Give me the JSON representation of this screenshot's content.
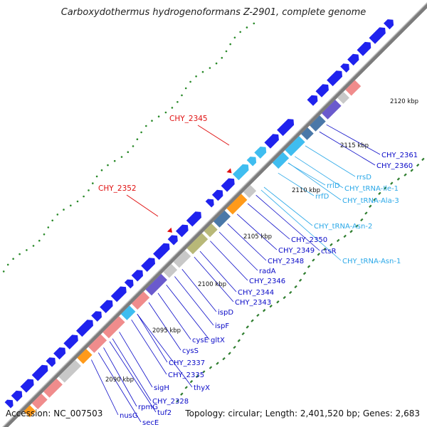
{
  "title": "Carboxydothermus hydrogenoformans Z-2901, complete genome",
  "footer": {
    "accession": "Accession: NC_007503",
    "summary": "Topology: circular; Length: 2,401,520 bp; Genes: 2,683"
  },
  "colors": {
    "backbone": "#8f8f8f",
    "cds": "#1f22ee",
    "trna": "#3fbdf0",
    "rrna": "#2fa8e8",
    "gc_skew_pos": "#2a8a2a",
    "highlight": "#e01010",
    "label_gene": "#0a0ac8",
    "label_rna": "#2aa8e8",
    "label_highlight": "#e01010",
    "cog_pink": "#f08c8c",
    "cog_olive": "#b8b878",
    "cog_steel": "#4a78a8",
    "cog_orange": "#ff9a1a",
    "cog_violet": "#6a5acd",
    "cog_gray": "#c8c8c8"
  },
  "scale_labels": [
    "2090 kbp",
    "2095 kbp",
    "2100 kbp",
    "2105 kbp",
    "2110 kbp",
    "2115 kbp",
    "2120 kbp"
  ],
  "highlighted_genes": [
    "CHY_2352",
    "CHY_2345"
  ],
  "gene_labels": [
    {
      "text": "CHY_2361",
      "kind": "gene"
    },
    {
      "text": "CHY_2360",
      "kind": "gene"
    },
    {
      "text": "rrsD",
      "kind": "rna"
    },
    {
      "text": "CHY_tRNA-Ile-1",
      "kind": "rna"
    },
    {
      "text": "rrlD",
      "kind": "rna"
    },
    {
      "text": "CHY_tRNA-Ala-3",
      "kind": "rna"
    },
    {
      "text": "rrfD",
      "kind": "rna"
    },
    {
      "text": "CHY_tRNA-Asn-2",
      "kind": "rna"
    },
    {
      "text": "CHY_2350",
      "kind": "gene"
    },
    {
      "text": "ctsR",
      "kind": "gene"
    },
    {
      "text": "CHY_2349",
      "kind": "gene"
    },
    {
      "text": "CHY_tRNA-Asn-1",
      "kind": "rna"
    },
    {
      "text": "CHY_2348",
      "kind": "gene"
    },
    {
      "text": "radA",
      "kind": "gene"
    },
    {
      "text": "CHY_2346",
      "kind": "gene"
    },
    {
      "text": "CHY_2344",
      "kind": "gene"
    },
    {
      "text": "CHY_2343",
      "kind": "gene"
    },
    {
      "text": "ispD",
      "kind": "gene"
    },
    {
      "text": "ispF",
      "kind": "gene"
    },
    {
      "text": "gltX",
      "kind": "gene"
    },
    {
      "text": "cysE",
      "kind": "gene"
    },
    {
      "text": "cysS",
      "kind": "gene"
    },
    {
      "text": "CHY_2337",
      "kind": "gene"
    },
    {
      "text": "CHY_2335",
      "kind": "gene"
    },
    {
      "text": "thyX",
      "kind": "gene"
    },
    {
      "text": "sigH",
      "kind": "gene"
    },
    {
      "text": "CHY_2328",
      "kind": "gene"
    },
    {
      "text": "rpmG",
      "kind": "gene"
    },
    {
      "text": "tuf2",
      "kind": "gene"
    },
    {
      "text": "nusG",
      "kind": "gene"
    },
    {
      "text": "secE",
      "kind": "gene"
    }
  ]
}
